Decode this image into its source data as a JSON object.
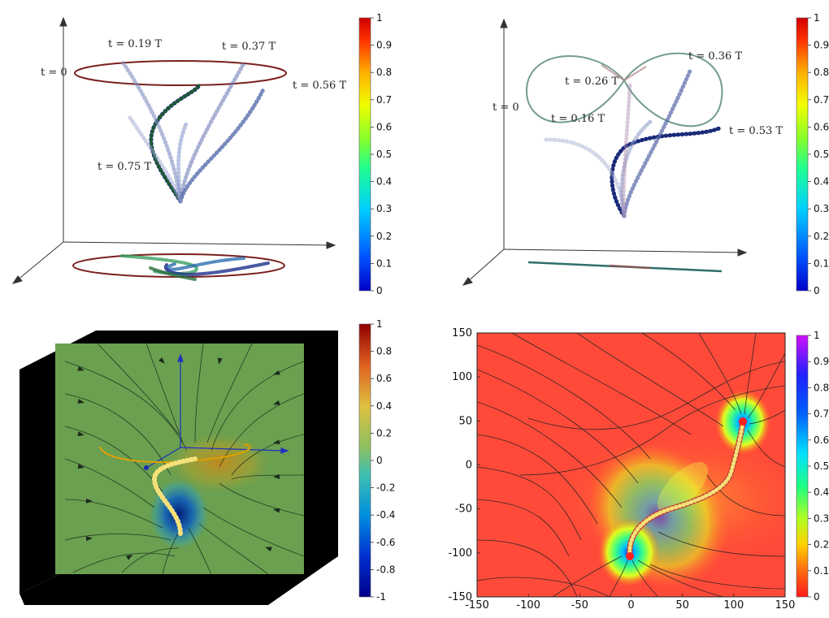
{
  "chart_data": [
    {
      "type": "line",
      "panel": "top-left",
      "annotations": [
        "t = 0",
        "t = 0.19 T",
        "t = 0.37 T",
        "t = 0.56 T",
        "t = 0.75 T"
      ],
      "colorbar": {
        "min": 0,
        "max": 1,
        "ticks": [
          "0",
          "0.1",
          "0.2",
          "0.3",
          "0.4",
          "0.5",
          "0.6",
          "0.7",
          "0.8",
          "0.9",
          "1"
        ]
      }
    },
    {
      "type": "line",
      "panel": "top-right",
      "annotations": [
        "t = 0",
        "t = 0.16 T",
        "t = 0.26 T",
        "t = 0.36 T",
        "t = 0.53 T"
      ],
      "colorbar": {
        "min": 0,
        "max": 1,
        "ticks": [
          "0",
          "0.1",
          "0.2",
          "0.3",
          "0.4",
          "0.5",
          "0.6",
          "0.7",
          "0.8",
          "0.9",
          "1"
        ]
      }
    },
    {
      "type": "heatmap",
      "panel": "bottom-left",
      "colorbar": {
        "min": -1,
        "max": 1,
        "ticks": [
          "-1",
          "-0.8",
          "-0.6",
          "-0.4",
          "-0.2",
          "0",
          "0.2",
          "0.4",
          "0.6",
          "0.8",
          "1"
        ]
      }
    },
    {
      "type": "heatmap",
      "panel": "bottom-right",
      "xlim": [
        -150,
        150
      ],
      "ylim": [
        -150,
        150
      ],
      "xticks": [
        "-150",
        "-100",
        "-50",
        "0",
        "50",
        "100",
        "150"
      ],
      "yticks": [
        "-150",
        "-100",
        "-50",
        "0",
        "50",
        "100",
        "150"
      ],
      "colorbar": {
        "min": 0,
        "max": 1,
        "ticks": [
          "0",
          "0.1",
          "0.2",
          "0.3",
          "0.4",
          "0.5",
          "0.6",
          "0.7",
          "0.8",
          "0.9",
          "1"
        ]
      },
      "filament": {
        "start": [
          0,
          -100
        ],
        "end": [
          110,
          55
        ]
      }
    }
  ],
  "colors": {
    "jet_low": "#1010ff",
    "jet_high": "#ff1a1a",
    "filament": "#f5e07a",
    "ring": "#7a1f1f"
  }
}
